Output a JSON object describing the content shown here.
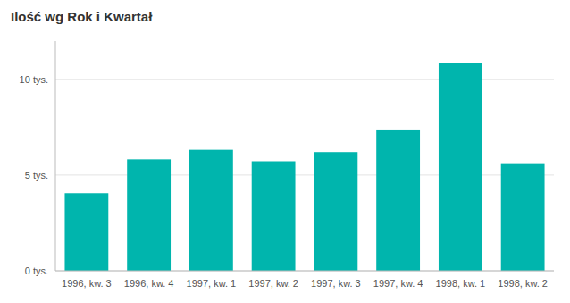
{
  "chart_data": {
    "type": "bar",
    "title": "Ilość wg Rok i Kwartał",
    "categories": [
      "1996, kw. 3",
      "1996, kw. 4",
      "1997, kw. 1",
      "1997, kw. 2",
      "1997, kw. 3",
      "1997, kw. 4",
      "1998, kw. 1",
      "1998, kw. 2"
    ],
    "values": [
      4050,
      5820,
      6320,
      5720,
      6200,
      7380,
      10850,
      5620
    ],
    "color": "#00B5AD",
    "ylim": [
      0,
      12000
    ],
    "yticks": [
      {
        "value": 0,
        "label": "0 tys."
      },
      {
        "value": 5000,
        "label": "5 tys."
      },
      {
        "value": 10000,
        "label": "10 tys."
      }
    ],
    "grid": true
  }
}
